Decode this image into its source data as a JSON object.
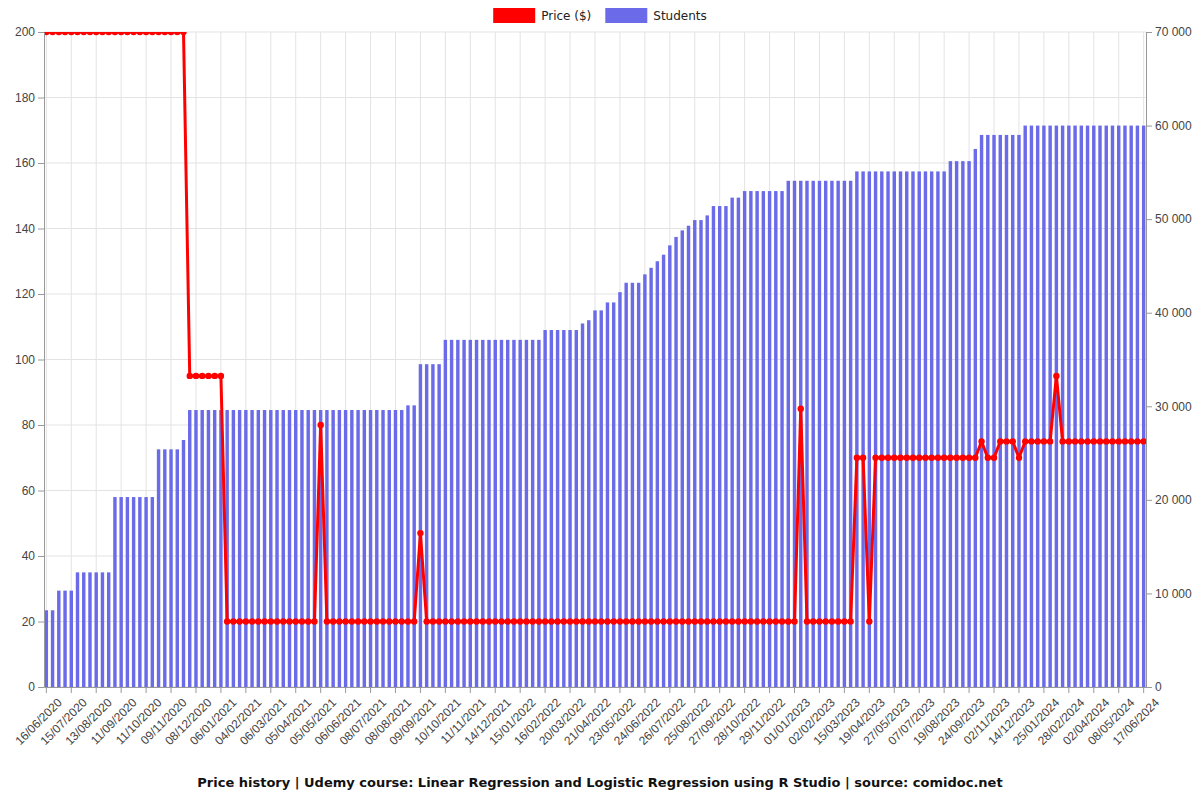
{
  "chart_data": {
    "type": "bar",
    "title": "Price history | Udemy course: Linear Regression and Logistic Regression using R Studio | source: comidoc.net",
    "categories": [
      "16/06/2020",
      null,
      null,
      null,
      "15/07/2020",
      null,
      null,
      null,
      "13/08/2020",
      null,
      null,
      null,
      "11/09/2020",
      null,
      null,
      null,
      "11/10/2020",
      null,
      null,
      null,
      "09/11/2020",
      null,
      null,
      null,
      "08/12/2020",
      null,
      null,
      null,
      "06/01/2021",
      null,
      null,
      null,
      "04/02/2021",
      null,
      null,
      null,
      "06/03/2021",
      null,
      null,
      null,
      "05/04/2021",
      null,
      null,
      null,
      "05/05/2021",
      null,
      null,
      null,
      "06/06/2021",
      null,
      null,
      null,
      "08/07/2021",
      null,
      null,
      null,
      "08/08/2021",
      null,
      null,
      null,
      "09/09/2021",
      null,
      null,
      null,
      "10/10/2021",
      null,
      null,
      null,
      "11/11/2021",
      null,
      null,
      null,
      "14/12/2021",
      null,
      null,
      null,
      "15/01/2022",
      null,
      null,
      null,
      "16/02/2022",
      null,
      null,
      null,
      "20/03/2022",
      null,
      null,
      null,
      "21/04/2022",
      null,
      null,
      null,
      "23/05/2022",
      null,
      null,
      null,
      "24/06/2022",
      null,
      null,
      null,
      "26/07/2022",
      null,
      null,
      null,
      "25/08/2022",
      null,
      null,
      null,
      "27/09/2022",
      null,
      null,
      null,
      "28/10/2022",
      null,
      null,
      null,
      "29/11/2022",
      null,
      null,
      null,
      "01/01/2023",
      null,
      null,
      null,
      "02/02/2023",
      null,
      null,
      null,
      "15/03/2023",
      null,
      null,
      null,
      "19/04/2023",
      null,
      null,
      null,
      "27/05/2023",
      null,
      null,
      null,
      "07/07/2023",
      null,
      null,
      null,
      "19/08/2023",
      null,
      null,
      null,
      "24/09/2023",
      null,
      null,
      null,
      "02/11/2023",
      null,
      null,
      null,
      "14/12/2023",
      null,
      null,
      null,
      "25/01/2024",
      null,
      null,
      null,
      "28/02/2024",
      null,
      null,
      null,
      "02/04/2024",
      null,
      null,
      null,
      "08/05/2024",
      null,
      null,
      null,
      "17/06/2024"
    ],
    "series": [
      {
        "name": "Price ($)",
        "type": "line",
        "marker": "circle",
        "color": "#ff0000",
        "axis": "y",
        "values": [
          200,
          200,
          200,
          200,
          200,
          200,
          200,
          200,
          200,
          200,
          200,
          200,
          200,
          200,
          200,
          200,
          200,
          200,
          200,
          200,
          200,
          200,
          200,
          95,
          95,
          95,
          95,
          95,
          95,
          20,
          20,
          20,
          20,
          20,
          20,
          20,
          20,
          20,
          20,
          20,
          20,
          20,
          20,
          20,
          80,
          20,
          20,
          20,
          20,
          20,
          20,
          20,
          20,
          20,
          20,
          20,
          20,
          20,
          20,
          20,
          47,
          20,
          20,
          20,
          20,
          20,
          20,
          20,
          20,
          20,
          20,
          20,
          20,
          20,
          20,
          20,
          20,
          20,
          20,
          20,
          20,
          20,
          20,
          20,
          20,
          20,
          20,
          20,
          20,
          20,
          20,
          20,
          20,
          20,
          20,
          20,
          20,
          20,
          20,
          20,
          20,
          20,
          20,
          20,
          20,
          20,
          20,
          20,
          20,
          20,
          20,
          20,
          20,
          20,
          20,
          20,
          20,
          20,
          20,
          20,
          20,
          85,
          20,
          20,
          20,
          20,
          20,
          20,
          20,
          20,
          70,
          70,
          20,
          70,
          70,
          70,
          70,
          70,
          70,
          70,
          70,
          70,
          70,
          70,
          70,
          70,
          70,
          70,
          70,
          70,
          75,
          70,
          70,
          75,
          75,
          75,
          70,
          75,
          75,
          75,
          75,
          75,
          95,
          75,
          75,
          75,
          75,
          75,
          75,
          75,
          75,
          75,
          75,
          75,
          75,
          75,
          75
        ]
      },
      {
        "name": "Students",
        "type": "bar",
        "color": "#6b6bea",
        "axis": "y2",
        "values": [
          8200,
          8200,
          10300,
          10300,
          10300,
          12250,
          12250,
          12250,
          12250,
          12250,
          12250,
          20300,
          20300,
          20300,
          20300,
          20300,
          20300,
          20300,
          25400,
          25400,
          25400,
          25400,
          26400,
          29600,
          29600,
          29600,
          29600,
          29600,
          29600,
          29600,
          29600,
          29600,
          29600,
          29600,
          29600,
          29600,
          29600,
          29600,
          29600,
          29600,
          29600,
          29600,
          29600,
          29600,
          29600,
          29600,
          29600,
          29600,
          29600,
          29600,
          29600,
          29600,
          29600,
          29600,
          29600,
          29600,
          29600,
          29600,
          30100,
          30100,
          34500,
          34500,
          34500,
          34500,
          37100,
          37100,
          37100,
          37100,
          37100,
          37100,
          37100,
          37100,
          37100,
          37100,
          37100,
          37100,
          37100,
          37100,
          37100,
          37100,
          38150,
          38150,
          38150,
          38150,
          38150,
          38150,
          38850,
          39200,
          40250,
          40250,
          41100,
          41100,
          42200,
          43200,
          43200,
          43200,
          44100,
          44800,
          45500,
          46200,
          47200,
          48100,
          48800,
          49300,
          49900,
          49900,
          50400,
          51400,
          51400,
          51400,
          52300,
          52300,
          53000,
          53000,
          53000,
          53000,
          53000,
          53000,
          53000,
          54100,
          54100,
          54100,
          54100,
          54100,
          54100,
          54100,
          54100,
          54100,
          54100,
          54100,
          55100,
          55100,
          55100,
          55100,
          55100,
          55100,
          55100,
          55100,
          55100,
          55100,
          55100,
          55100,
          55100,
          55100,
          55100,
          56200,
          56200,
          56200,
          56200,
          57500,
          59000,
          59000,
          59000,
          59000,
          59000,
          59000,
          59000,
          60000,
          60000,
          60000,
          60000,
          60000,
          60000,
          60000,
          60000,
          60000,
          60000,
          60000,
          60000,
          60000,
          60000,
          60000,
          60000,
          60000,
          60000,
          60000,
          60000
        ]
      }
    ],
    "ylim": [
      0,
      200
    ],
    "yticks": [
      0,
      20,
      40,
      60,
      80,
      100,
      120,
      140,
      160,
      180,
      200
    ],
    "y2lim": [
      0,
      70000
    ],
    "y2ticks": [
      0,
      {
        "value": 10000,
        "label": "10 000"
      },
      {
        "value": 20000,
        "label": "20 000"
      },
      {
        "value": 30000,
        "label": "30 000"
      },
      {
        "value": 40000,
        "label": "40 000"
      },
      {
        "value": 50000,
        "label": "50 000"
      },
      {
        "value": 60000,
        "label": "60 000"
      },
      {
        "value": 70000,
        "label": "70 000"
      }
    ],
    "grid": true,
    "legend": "top"
  }
}
